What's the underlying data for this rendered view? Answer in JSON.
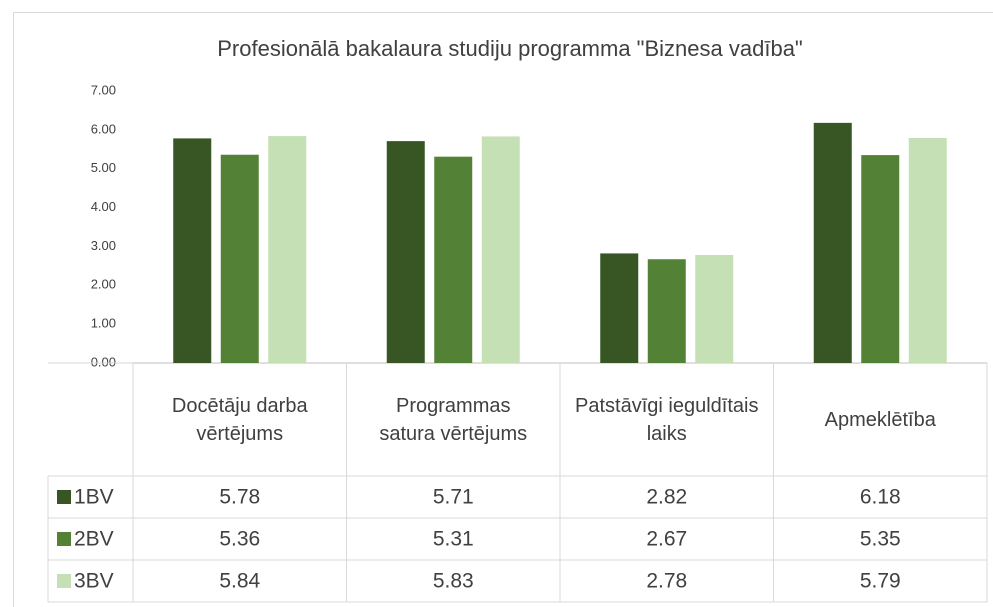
{
  "chart_data": {
    "type": "bar",
    "title": "Profesionālā bakalaura studiju programma \"Biznesa vadība\"",
    "categories": [
      "Docētāju darba vērtējums",
      "Programmas satura vērtējums",
      "Patstāvīgi ieguldītais laiks",
      "Apmeklētība"
    ],
    "series": [
      {
        "name": "1BV",
        "color": "#375623",
        "values": [
          5.78,
          5.71,
          2.82,
          6.18
        ]
      },
      {
        "name": "2BV",
        "color": "#538135",
        "values": [
          5.36,
          5.31,
          2.67,
          5.35
        ]
      },
      {
        "name": "3BV",
        "color": "#c5e0b4",
        "values": [
          5.84,
          5.83,
          2.78,
          5.79
        ]
      }
    ],
    "ylim": [
      0,
      7
    ],
    "yticks": [
      {
        "value": 0,
        "label": "0.00"
      },
      {
        "value": 1,
        "label": "1.00"
      },
      {
        "value": 2,
        "label": "2.00"
      },
      {
        "value": 3,
        "label": "3.00"
      },
      {
        "value": 4,
        "label": "4.00"
      },
      {
        "value": 5,
        "label": "5.00"
      },
      {
        "value": 6,
        "label": "6.00"
      },
      {
        "value": 7,
        "label": "7.00"
      }
    ]
  }
}
